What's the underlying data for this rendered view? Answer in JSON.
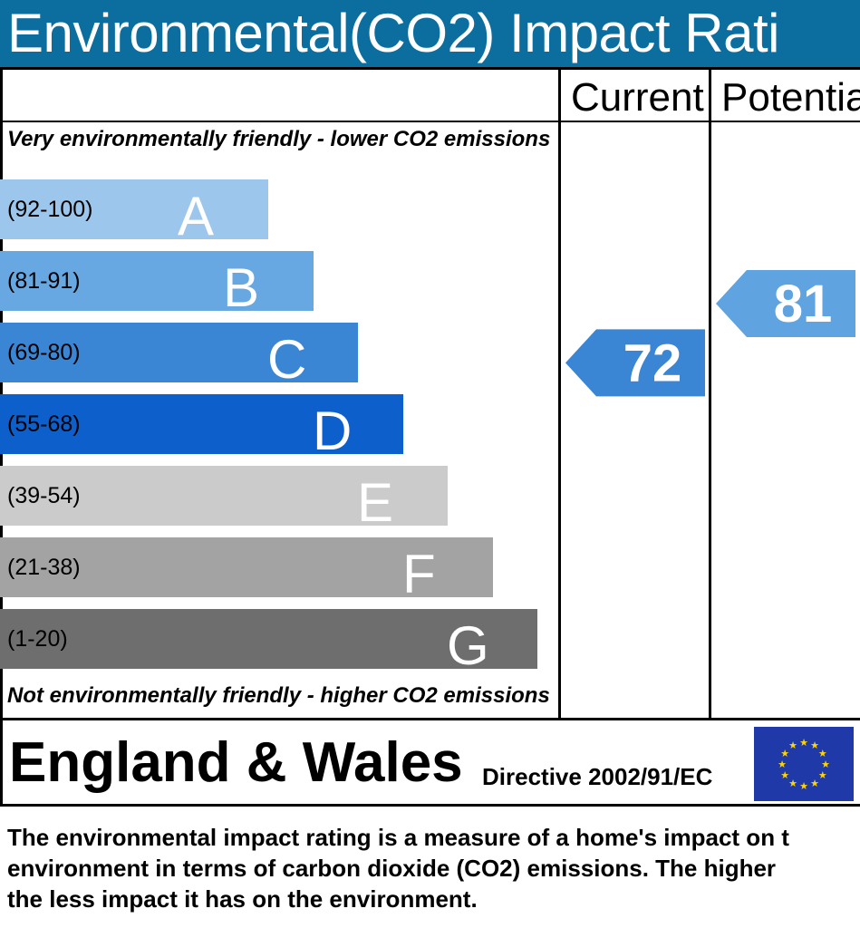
{
  "title": "Environmental(CO2) Impact Rati",
  "columns": {
    "current": "Current",
    "potential": "Potentia"
  },
  "top_caption": "Very environmentally friendly - lower CO2 emissions",
  "bottom_caption": "Not environmentally friendly - higher CO2 emissions",
  "footer": {
    "region": "England & Wales",
    "directive": "Directive 2002/91/EC",
    "eu_flag": "eu-flag-icon"
  },
  "description": [
    "The environmental impact rating is a measure of a home's impact on t",
    "environment in terms of carbon dioxide (CO2) emissions. The higher",
    "the less impact it has on the environment."
  ],
  "colors": {
    "title_bg": "#0c6e9f",
    "current_arrow": "#3a86d4",
    "potential_arrow": "#5fa3e0",
    "eu_blue": "#1f3aa8",
    "eu_star": "#ffd400"
  },
  "chart_data": {
    "type": "bar",
    "bands": [
      {
        "letter": "A",
        "range": "(92-100)",
        "color": "#9cc6ec"
      },
      {
        "letter": "B",
        "range": "(81-91)",
        "color": "#67a7e2"
      },
      {
        "letter": "C",
        "range": "(69-80)",
        "color": "#3a86d4"
      },
      {
        "letter": "D",
        "range": "(55-68)",
        "color": "#0d5fcb"
      },
      {
        "letter": "E",
        "range": "(39-54)",
        "color": "#cbcbcb"
      },
      {
        "letter": "F",
        "range": "(21-38)",
        "color": "#a3a3a3"
      },
      {
        "letter": "G",
        "range": "(1-20)",
        "color": "#6e6e6e"
      }
    ],
    "current": 72,
    "potential": 81
  }
}
